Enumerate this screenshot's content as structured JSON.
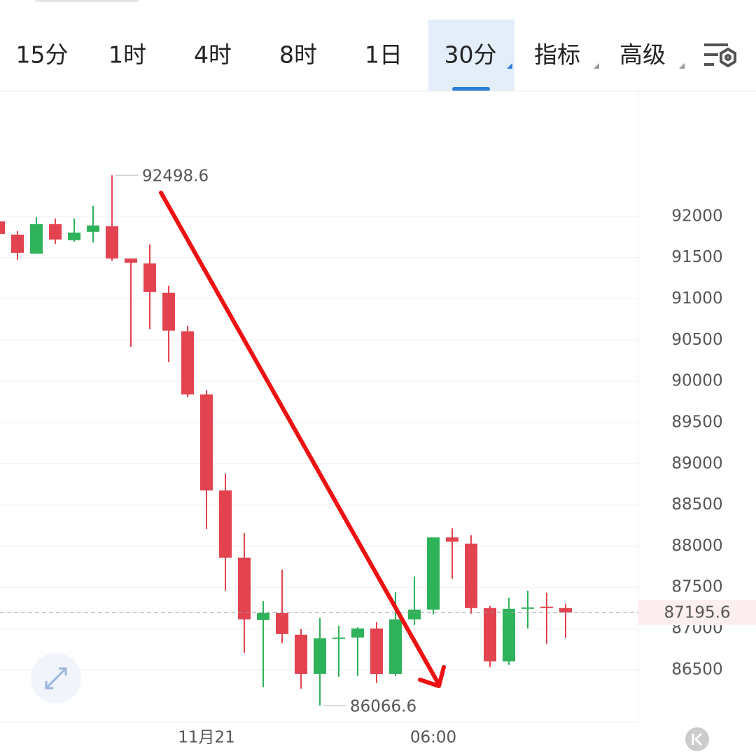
{
  "tabs": [
    "15分",
    "1时",
    "4时",
    "8时",
    "1日",
    "30分",
    "指标",
    "高级"
  ],
  "active_tab": 5,
  "chart_data": {
    "type": "candlestick",
    "categories": [
      null,
      null,
      null,
      null,
      null,
      null,
      null,
      null,
      null,
      null,
      null,
      "11月21",
      null,
      null,
      null,
      null,
      null,
      null,
      null,
      null,
      null,
      null,
      null,
      "06:00",
      null,
      null,
      null,
      null,
      null,
      null,
      null
    ],
    "open": [
      91940,
      91779,
      91549,
      91906,
      91711,
      91813,
      91881,
      91490,
      91430,
      91074,
      90606,
      89841,
      88677,
      87861,
      87104,
      87189,
      86926,
      86449,
      86883,
      86892,
      87002,
      86449,
      87112,
      87231,
      88107,
      88031,
      87249,
      86603,
      87249,
      87266,
      87249
    ],
    "high": [
      91940,
      91821,
      91992,
      91975,
      91975,
      92128,
      92498.6,
      91490,
      91660,
      91159,
      90674,
      89892,
      88881,
      88158,
      87333,
      87716,
      86994,
      87130,
      87036,
      87019,
      87079,
      87444,
      87631,
      88107,
      88218,
      88133,
      87274,
      87376,
      87461,
      87436,
      87300
    ],
    "low": [
      91787,
      91473,
      91549,
      91668,
      91694,
      91685,
      91464,
      90419,
      90632,
      90232,
      89807,
      88209,
      87461,
      86704,
      86288,
      86823,
      86271,
      86066.6,
      86415,
      86424,
      86339,
      86424,
      87044,
      87172,
      87606,
      87181,
      86534,
      86560,
      87002,
      86815,
      86891
    ],
    "close": [
      91787,
      91558,
      91906,
      91720,
      91804,
      91890,
      91490,
      91439,
      91082,
      90615,
      89841,
      88677,
      87861,
      87112,
      87189,
      86934,
      86449,
      86883,
      86892,
      87002,
      86449,
      87112,
      87231,
      88107,
      88056,
      87249,
      86603,
      87240,
      87257,
      87249,
      87195.6
    ],
    "up_color": "#2eb25a",
    "down_color": "#e2434f",
    "ylim": [
      85870,
      93520
    ],
    "yticks": [
      86500,
      87000,
      87500,
      88000,
      88500,
      89000,
      89500,
      90000,
      90500,
      91000,
      91500,
      92000
    ],
    "grid": true
  }
}
